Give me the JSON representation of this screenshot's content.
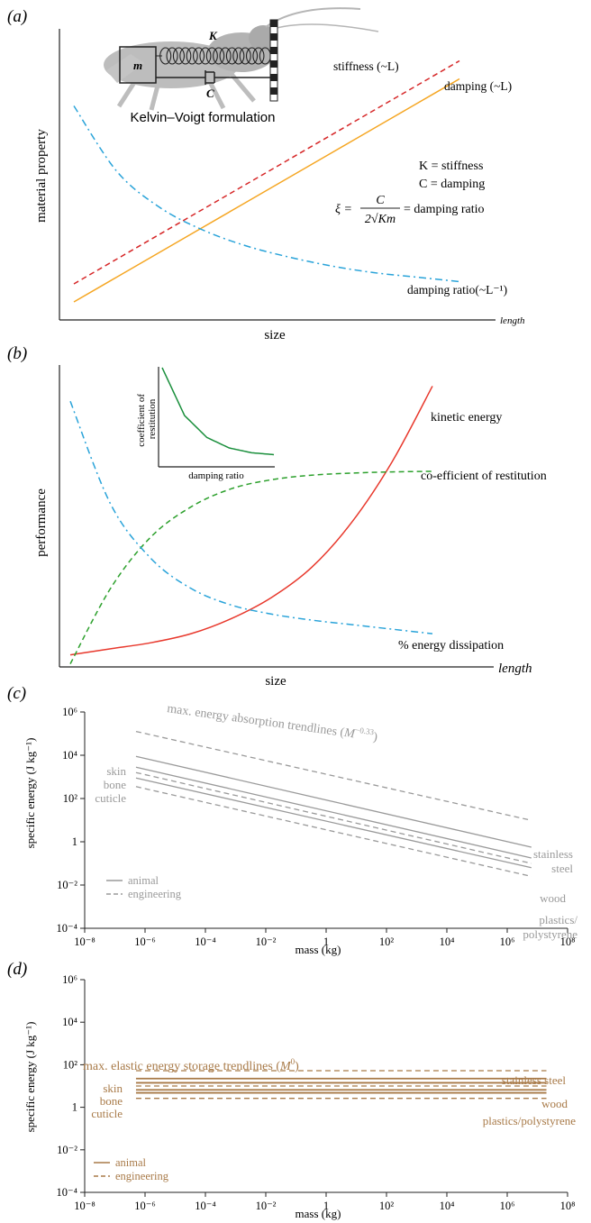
{
  "colors": {
    "stiffness": "#d62728",
    "damping": "#f5a623",
    "damping_ratio": "#29a3d9",
    "kinetic": "#e8382c",
    "restitution": "#2ca02c",
    "inset_curve": "#1a8f3c",
    "grey": "#9a9a9a",
    "brown": "#a87a48",
    "axis": "#222222",
    "insect": "#b9b9b9"
  },
  "chart_data": [
    {
      "panel": "(a)",
      "type": "line",
      "ylabel": "material property",
      "xlabel": "size",
      "x_end_label": "length",
      "x": [
        1,
        2,
        3,
        4,
        5,
        6,
        7,
        8,
        9,
        10
      ],
      "series": [
        {
          "name": "stiffness (~L)",
          "key": "stiffness",
          "style": "dashed",
          "values": [
            1.6,
            2.7,
            3.8,
            4.9,
            6.0,
            7.1,
            8.2,
            9.3,
            10.4,
            11.5
          ]
        },
        {
          "name": "damping (~L)",
          "key": "damping",
          "style": "solid",
          "values": [
            0.8,
            1.9,
            3.0,
            4.1,
            5.2,
            6.3,
            7.4,
            8.5,
            9.6,
            10.7
          ]
        },
        {
          "name": "damping ratio(~L⁻¹)",
          "key": "damping_ratio",
          "style": "dashdot",
          "values": [
            9.5,
            6.6,
            5.0,
            4.0,
            3.3,
            2.8,
            2.4,
            2.1,
            1.9,
            1.7
          ]
        }
      ],
      "ylim": [
        0,
        13
      ],
      "inset": {
        "labels": {
          "mass": "m",
          "spring": "K",
          "damper": "C"
        },
        "caption": "Kelvin–Voigt formulation"
      },
      "legend_text": {
        "k_def": "K = stiffness",
        "c_def": "C = damping",
        "xi": "ξ =",
        "numerator": "C",
        "denominator": "2√Km",
        "xi_def": "= damping ratio"
      }
    },
    {
      "panel": "(b)",
      "type": "line",
      "ylabel": "performance",
      "xlabel": "size",
      "x_end_label": "length",
      "x": [
        1,
        2,
        3,
        4,
        5,
        6,
        7,
        8,
        9,
        10
      ],
      "series": [
        {
          "name": "kinetic energy",
          "key": "kinetic",
          "style": "solid",
          "values": [
            0.4,
            0.6,
            0.8,
            1.1,
            1.6,
            2.3,
            3.3,
            4.8,
            6.8,
            9.3
          ]
        },
        {
          "name": "co-efficient of restitution",
          "key": "restitution",
          "style": "dashed",
          "values": [
            0.1,
            2.6,
            4.3,
            5.3,
            5.9,
            6.2,
            6.35,
            6.42,
            6.46,
            6.48
          ]
        },
        {
          "name": "% energy dissipation",
          "key": "damping_ratio",
          "style": "dashdot",
          "values": [
            8.8,
            5.4,
            3.6,
            2.6,
            2.05,
            1.75,
            1.55,
            1.4,
            1.25,
            1.1
          ]
        }
      ],
      "ylim": [
        0,
        10
      ],
      "inset": {
        "xlabel": "damping ratio",
        "ylabel": "coefficient of restitution",
        "x": [
          0,
          1,
          2,
          3,
          4,
          5
        ],
        "values": [
          1.0,
          0.5,
          0.27,
          0.16,
          0.11,
          0.09
        ]
      }
    },
    {
      "panel": "(c)",
      "type": "line",
      "ylabel": "specific energy (J kg⁻¹)",
      "xlabel": "mass (kg)",
      "xscale": "log",
      "yscale": "log",
      "xlim": [
        -8,
        8
      ],
      "ylim": [
        -4,
        6
      ],
      "xticks": [
        "10⁻⁸",
        "10⁻⁶",
        "10⁻⁴",
        "10⁻²",
        "1",
        "10²",
        "10⁴",
        "10⁶",
        "10⁸"
      ],
      "yticks": [
        "10⁻⁴",
        "10⁻²",
        "1",
        "10²",
        "10⁴",
        "10⁶"
      ],
      "trend_label": "max. energy absorption trendlines (",
      "trend_M": "M",
      "trend_exp": "−0.33",
      "trend_close": ")",
      "x_range": [
        -6.3,
        6.8
      ],
      "series": [
        {
          "name": "stainless steel",
          "style": "dashed",
          "y_start": 5.1,
          "y_end": 0.99
        },
        {
          "name": "skin",
          "style": "solid",
          "y_start": 3.95,
          "y_end": -0.25
        },
        {
          "name": "",
          "style": "solid",
          "y_start": 3.45,
          "y_end": -0.75
        },
        {
          "name": "",
          "style": "dashed",
          "y_start": 3.2,
          "y_end": -1.0
        },
        {
          "name": "cuticle",
          "style": "solid",
          "y_start": 2.95,
          "y_end": -1.2
        },
        {
          "name": "",
          "style": "dashed",
          "y_start": 2.55,
          "y_end": -1.6
        }
      ],
      "left_labels": [
        "skin",
        "bone",
        "cuticle"
      ],
      "right_labels": [
        "stainless",
        "steel",
        "wood",
        "plastics/",
        "polystyrene"
      ],
      "legend": [
        {
          "name": "animal",
          "style": "solid"
        },
        {
          "name": "engineering",
          "style": "dashed"
        }
      ]
    },
    {
      "panel": "(d)",
      "type": "line",
      "ylabel": "specific energy (J kg⁻¹)",
      "xlabel": "mass (kg)",
      "xscale": "log",
      "yscale": "log",
      "xlim": [
        -8,
        8
      ],
      "ylim": [
        -4,
        6
      ],
      "xticks": [
        "10⁻⁸",
        "10⁻⁶",
        "10⁻⁴",
        "10⁻²",
        "1",
        "10²",
        "10⁴",
        "10⁶",
        "10⁸"
      ],
      "yticks": [
        "10⁻⁴",
        "10⁻²",
        "1",
        "10²",
        "10⁴",
        "10⁶"
      ],
      "trend_label": "max. elastic energy storage trendlines (",
      "trend_M": "M",
      "trend_exp": "0",
      "trend_close": ")",
      "x_range": [
        -6.3,
        7.3
      ],
      "series": [
        {
          "name": "stainless steel",
          "style": "dashed",
          "y": 1.72
        },
        {
          "name": "skin",
          "style": "solid",
          "y": 1.35
        },
        {
          "name": "",
          "style": "solid",
          "y": 1.15
        },
        {
          "name": "wood",
          "style": "dashed",
          "y": 1.0
        },
        {
          "name": "",
          "style": "solid",
          "y": 0.82
        },
        {
          "name": "cuticle",
          "style": "solid",
          "y": 0.68
        },
        {
          "name": "plastics/polystyrene",
          "style": "dashed",
          "y": 0.42
        }
      ],
      "left_labels": [
        "skin",
        "bone",
        "cuticle"
      ],
      "right_labels": [
        "stainless steel",
        "wood",
        "plastics/polystyrene"
      ],
      "legend": [
        {
          "name": "animal",
          "style": "solid"
        },
        {
          "name": "engineering",
          "style": "dashed"
        }
      ]
    }
  ]
}
